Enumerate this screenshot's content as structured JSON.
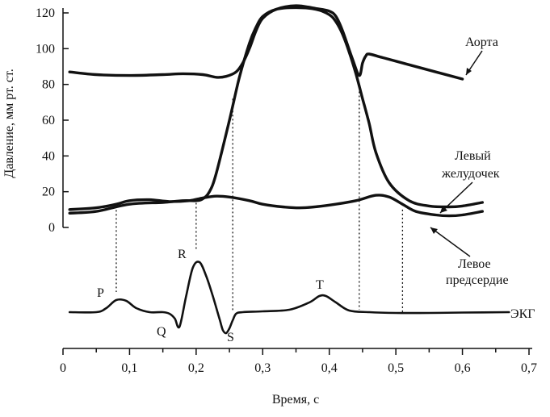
{
  "chart_data": {
    "type": "line",
    "title": "",
    "xlabel": "Время, с",
    "ylabel": "Давление, мм рт. ст.",
    "xlim": [
      0,
      0.7
    ],
    "ylim": [
      0,
      120
    ],
    "grid": false,
    "x_ticks": [
      "0",
      "0,1",
      "0,2",
      "0,3",
      "0,4",
      "0,5",
      "0,6",
      "0,7"
    ],
    "y_ticks": [
      "0",
      "20",
      "40",
      "60",
      "80",
      "100",
      "120"
    ],
    "series": [
      {
        "name": "Аорта",
        "x": [
          0.01,
          0.05,
          0.1,
          0.15,
          0.18,
          0.21,
          0.23,
          0.245,
          0.26,
          0.27,
          0.28,
          0.29,
          0.3,
          0.32,
          0.35,
          0.38,
          0.4,
          0.41,
          0.42,
          0.435,
          0.445,
          0.45,
          0.455,
          0.46,
          0.48,
          0.52,
          0.56,
          0.6
        ],
        "y": [
          87,
          85.5,
          85,
          85.5,
          86,
          85.5,
          84,
          84.5,
          87,
          92,
          100,
          110,
          117,
          122,
          124,
          122.5,
          121,
          118,
          110,
          94,
          85,
          92,
          96,
          97,
          95,
          91,
          87,
          83
        ]
      },
      {
        "name": "Левый желудочек",
        "x": [
          0.01,
          0.05,
          0.1,
          0.15,
          0.18,
          0.2,
          0.21,
          0.22,
          0.23,
          0.25,
          0.265,
          0.28,
          0.29,
          0.3,
          0.32,
          0.35,
          0.38,
          0.4,
          0.41,
          0.42,
          0.43,
          0.44,
          0.45,
          0.46,
          0.47,
          0.49,
          0.52,
          0.55,
          0.58,
          0.6,
          0.63
        ],
        "y": [
          8,
          9,
          13,
          14,
          15,
          15,
          16,
          20,
          30,
          60,
          84,
          103,
          112,
          118,
          122,
          123,
          122,
          119,
          115,
          108,
          98,
          86,
          72,
          58,
          42,
          25,
          15,
          12,
          11.5,
          12,
          14
        ]
      },
      {
        "name": "Левое предсердие",
        "x": [
          0.01,
          0.05,
          0.08,
          0.1,
          0.13,
          0.16,
          0.19,
          0.21,
          0.23,
          0.25,
          0.28,
          0.3,
          0.33,
          0.36,
          0.4,
          0.44,
          0.47,
          0.49,
          0.51,
          0.53,
          0.56,
          0.58,
          0.6,
          0.63
        ],
        "y": [
          10,
          11,
          13,
          15,
          15.5,
          14.5,
          15,
          16.5,
          17.5,
          17,
          15,
          13,
          11.5,
          11,
          12.5,
          15,
          18,
          17,
          13,
          9,
          7,
          6.5,
          7,
          9
        ]
      },
      {
        "name": "ЭКГ",
        "x": [
          0.01,
          0.05,
          0.065,
          0.08,
          0.095,
          0.11,
          0.13,
          0.15,
          0.16,
          0.168,
          0.175,
          0.185,
          0.195,
          0.205,
          0.215,
          0.225,
          0.235,
          0.24,
          0.245,
          0.25,
          0.255,
          0.26,
          0.27,
          0.3,
          0.34,
          0.37,
          0.385,
          0.395,
          0.41,
          0.43,
          0.46,
          0.5,
          0.55,
          0.6,
          0.67
        ],
        "y": [
          0,
          0,
          0.05,
          0.15,
          0.14,
          0.05,
          0,
          0,
          -0.02,
          -0.08,
          -0.18,
          0.2,
          0.55,
          0.62,
          0.45,
          0.2,
          -0.08,
          -0.22,
          -0.26,
          -0.2,
          -0.1,
          -0.02,
          0,
          0.01,
          0.03,
          0.12,
          0.2,
          0.2,
          0.12,
          0.02,
          0,
          -0.01,
          -0.01,
          -0.005,
          0
        ]
      }
    ],
    "vertical_lines_x": [
      0.08,
      0.2,
      0.255,
      0.445,
      0.51
    ],
    "ecg_labels": [
      "P",
      "Q",
      "R",
      "S",
      "T"
    ],
    "legend": {
      "aorta": "Аорта",
      "ventricle_line1": "Левый",
      "ventricle_line2": "желудочек",
      "atrium_line1": "Левое",
      "atrium_line2": "предсердие",
      "ecg": "ЭКГ"
    }
  }
}
